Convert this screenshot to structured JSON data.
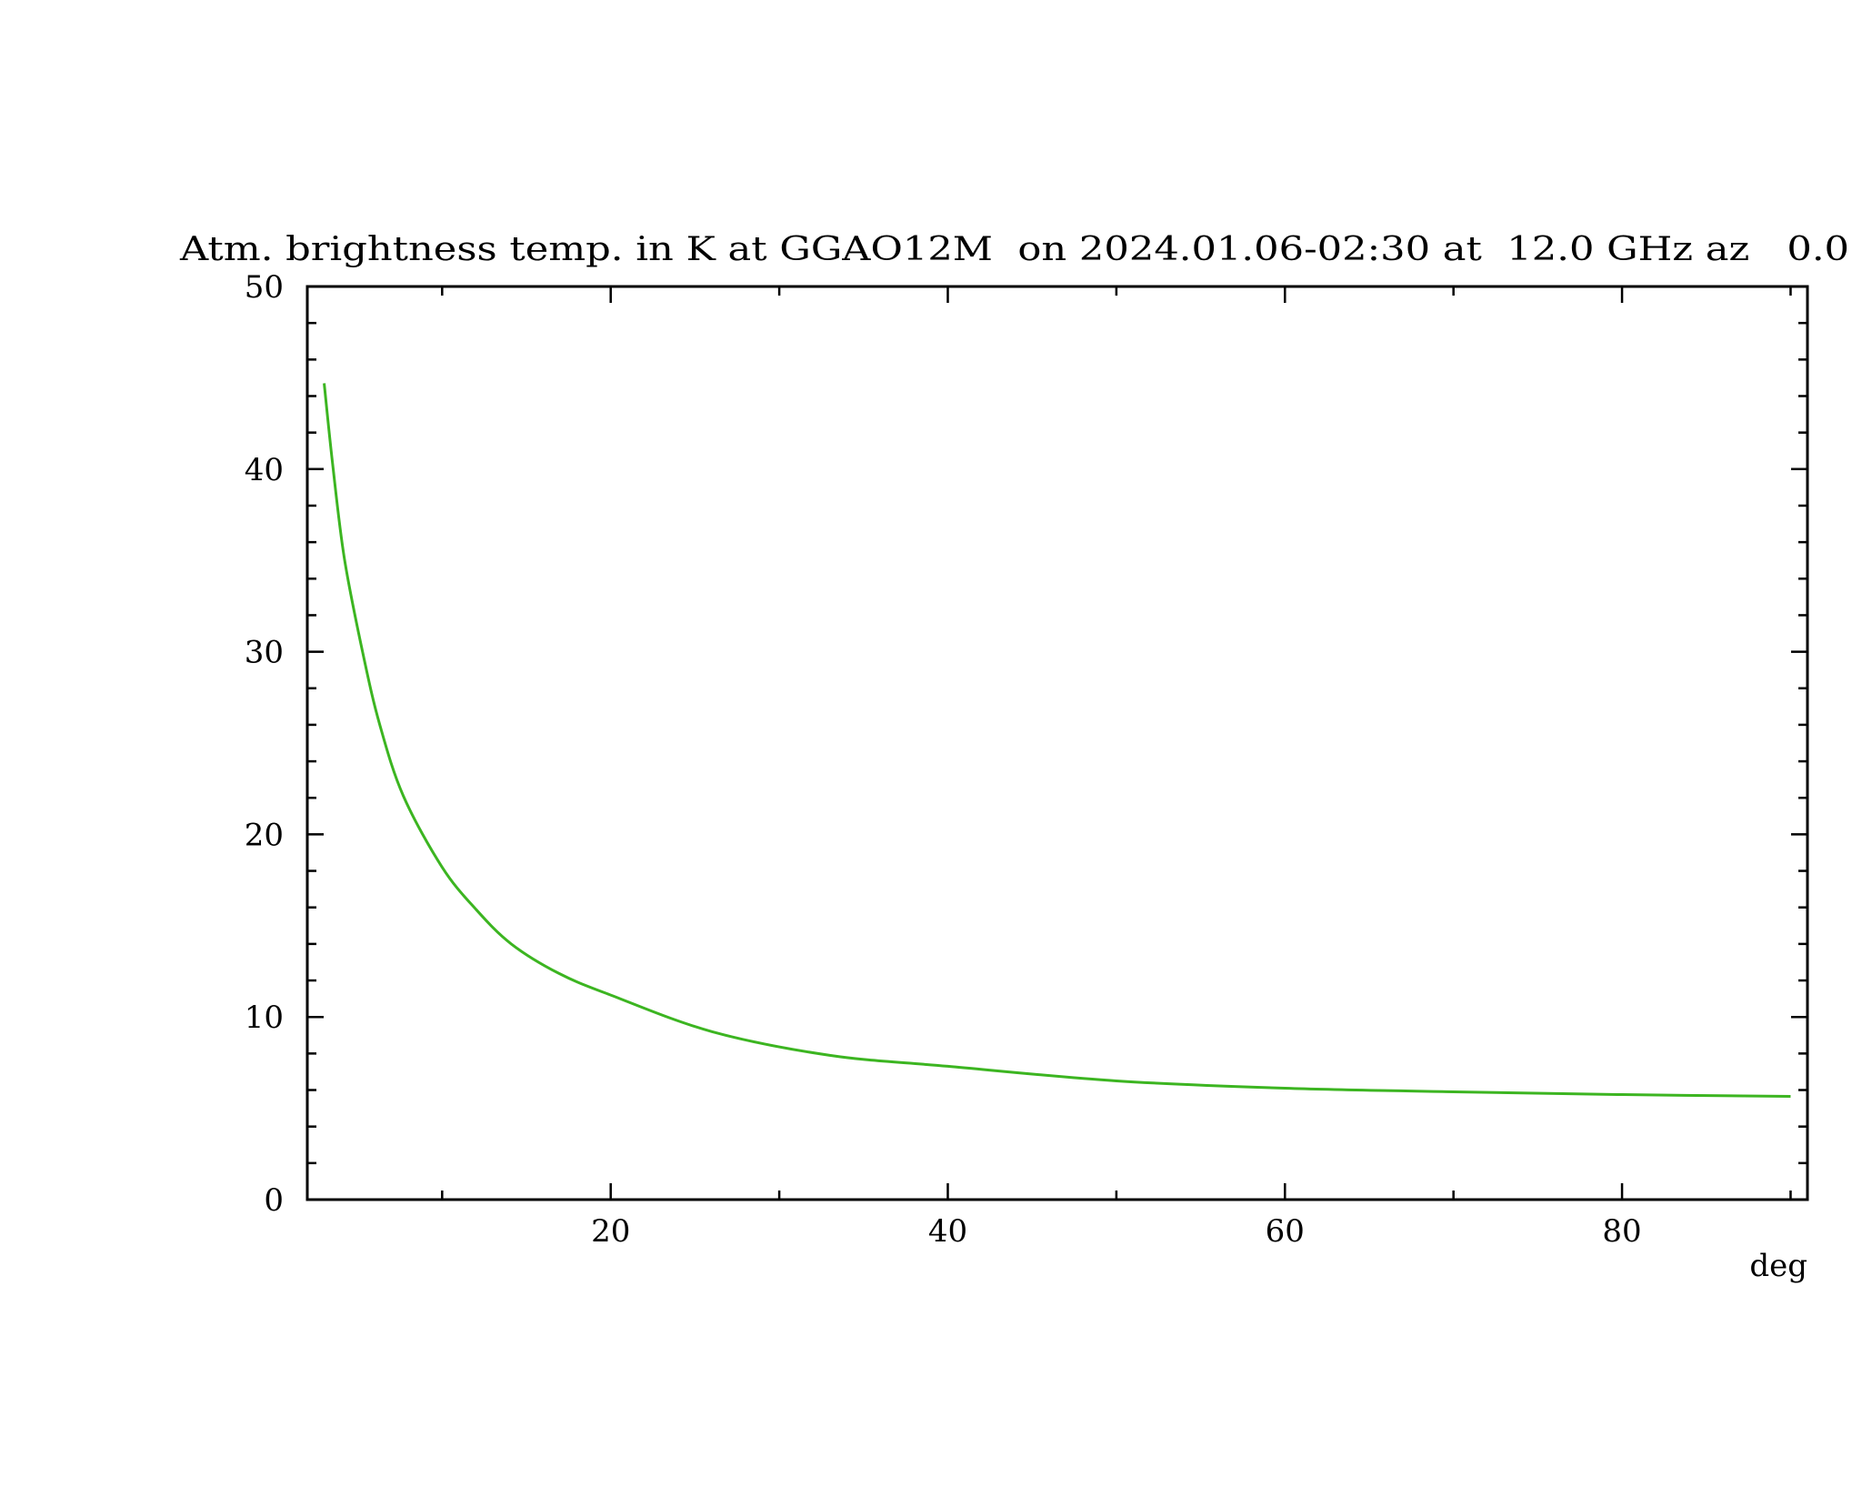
{
  "chart_data": {
    "type": "line",
    "title": "Atm. brightness temp. in K at GGAO12M  on 2024.01.06-02:30 at  12.0 GHz az   0.0",
    "xlabel": "deg",
    "ylabel": "",
    "xlim": [
      2,
      91
    ],
    "ylim": [
      0,
      50
    ],
    "xticks": [
      20,
      40,
      60,
      80
    ],
    "xtick_labels": [
      "20",
      "40",
      "60",
      "80"
    ],
    "x_minor_step": 10,
    "yticks": [
      0,
      10,
      20,
      30,
      40,
      50
    ],
    "ytick_labels": [
      "0",
      "10",
      "20",
      "30",
      "40",
      "50"
    ],
    "y_minor_step": 2,
    "grid": false,
    "series": [
      {
        "color": "#3cb521",
        "x": [
          3.0,
          3.5,
          4.2,
          5.3,
          6.3,
          7.7,
          10,
          12,
          14.1,
          16.9,
          20,
          26,
          33,
          40,
          50,
          60,
          70,
          80,
          90
        ],
        "y": [
          44.7,
          40.3,
          35.1,
          29.9,
          26.0,
          22.1,
          18.2,
          15.9,
          14.0,
          12.4,
          11.2,
          9.2,
          7.9,
          7.3,
          6.5,
          6.1,
          5.9,
          5.75,
          5.65
        ]
      }
    ]
  }
}
